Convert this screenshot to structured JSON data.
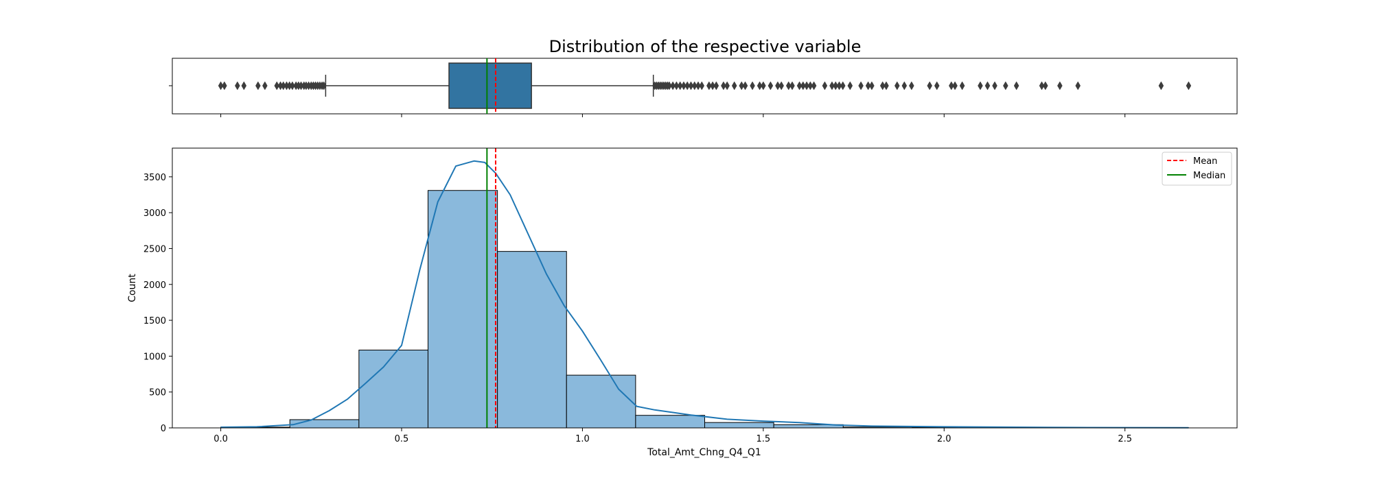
{
  "chart_data": {
    "type": "histogram",
    "title": "Distribution of the respective variable",
    "xlabel": "Total_Amt_Chng_Q4_Q1",
    "ylabel": "Count",
    "xlim": [
      -0.134,
      2.81
    ],
    "ylim": [
      0,
      3900
    ],
    "x_ticks": [
      0.0,
      0.5,
      1.0,
      1.5,
      2.0,
      2.5
    ],
    "x_tick_labels": [
      "0.0",
      "0.5",
      "1.0",
      "1.5",
      "2.0",
      "2.5"
    ],
    "y_ticks": [
      0,
      500,
      1000,
      1500,
      2000,
      2500,
      3000,
      3500
    ],
    "y_tick_labels": [
      "0",
      "500",
      "1000",
      "1500",
      "2000",
      "2500",
      "3000",
      "3500"
    ],
    "bins": [
      {
        "x0": 0.0,
        "x1": 0.191,
        "count": 10
      },
      {
        "x0": 0.191,
        "x1": 0.382,
        "count": 115
      },
      {
        "x0": 0.382,
        "x1": 0.573,
        "count": 1085
      },
      {
        "x0": 0.573,
        "x1": 0.765,
        "count": 3310
      },
      {
        "x0": 0.765,
        "x1": 0.956,
        "count": 2460
      },
      {
        "x0": 0.956,
        "x1": 1.147,
        "count": 735
      },
      {
        "x0": 1.147,
        "x1": 1.338,
        "count": 175
      },
      {
        "x0": 1.338,
        "x1": 1.529,
        "count": 75
      },
      {
        "x0": 1.529,
        "x1": 1.721,
        "count": 45
      },
      {
        "x0": 1.721,
        "x1": 1.912,
        "count": 12
      },
      {
        "x0": 1.912,
        "x1": 2.103,
        "count": 8
      },
      {
        "x0": 2.103,
        "x1": 2.294,
        "count": 7
      },
      {
        "x0": 2.294,
        "x1": 2.485,
        "count": 3
      },
      {
        "x0": 2.485,
        "x1": 2.676,
        "count": 2
      }
    ],
    "kde": {
      "x": [
        0.0,
        0.1,
        0.2,
        0.25,
        0.3,
        0.35,
        0.4,
        0.45,
        0.5,
        0.55,
        0.6,
        0.65,
        0.7,
        0.73,
        0.76,
        0.8,
        0.85,
        0.9,
        0.95,
        1.0,
        1.05,
        1.1,
        1.15,
        1.2,
        1.3,
        1.4,
        1.5,
        1.6,
        1.7,
        1.8,
        2.0,
        2.2,
        2.4,
        2.676
      ],
      "y": [
        10,
        15,
        45,
        110,
        240,
        400,
        620,
        850,
        1150,
        2200,
        3150,
        3650,
        3720,
        3700,
        3550,
        3250,
        2700,
        2150,
        1700,
        1350,
        950,
        540,
        300,
        250,
        180,
        120,
        95,
        75,
        40,
        25,
        15,
        10,
        5,
        3
      ]
    },
    "mean": 0.76,
    "median": 0.736,
    "boxplot": {
      "q1": 0.631,
      "median": 0.736,
      "q3": 0.859,
      "whisker_low": 0.29,
      "whisker_high": 1.196,
      "outliers": [
        0.0,
        0.01,
        0.046,
        0.064,
        0.103,
        0.122,
        0.155,
        0.165,
        0.173,
        0.182,
        0.19,
        0.198,
        0.208,
        0.215,
        0.222,
        0.23,
        0.236,
        0.243,
        0.25,
        0.256,
        0.262,
        0.268,
        0.274,
        0.28,
        0.285,
        1.2,
        1.205,
        1.21,
        1.215,
        1.22,
        1.225,
        1.23,
        1.235,
        1.24,
        1.25,
        1.26,
        1.27,
        1.28,
        1.29,
        1.3,
        1.31,
        1.32,
        1.33,
        1.35,
        1.36,
        1.37,
        1.39,
        1.4,
        1.42,
        1.44,
        1.45,
        1.47,
        1.49,
        1.5,
        1.52,
        1.54,
        1.55,
        1.57,
        1.58,
        1.6,
        1.61,
        1.62,
        1.63,
        1.64,
        1.67,
        1.69,
        1.7,
        1.71,
        1.72,
        1.74,
        1.77,
        1.79,
        1.8,
        1.83,
        1.84,
        1.87,
        1.89,
        1.91,
        1.96,
        1.98,
        2.02,
        2.03,
        2.05,
        2.1,
        2.12,
        2.14,
        2.17,
        2.2,
        2.27,
        2.28,
        2.32,
        2.37,
        2.6,
        2.676
      ]
    },
    "legend": {
      "position": "top-right",
      "entries": [
        {
          "label": "Mean",
          "color": "#ff0000",
          "style": "dashed"
        },
        {
          "label": "Median",
          "color": "#008000",
          "style": "solid"
        }
      ]
    },
    "colors": {
      "bar_fill": "#8ab9dc",
      "box_fill": "#3274a1",
      "kde_line": "#1f77b4",
      "mean_line": "#ff0000",
      "median_line": "#008000"
    },
    "grid": false
  }
}
